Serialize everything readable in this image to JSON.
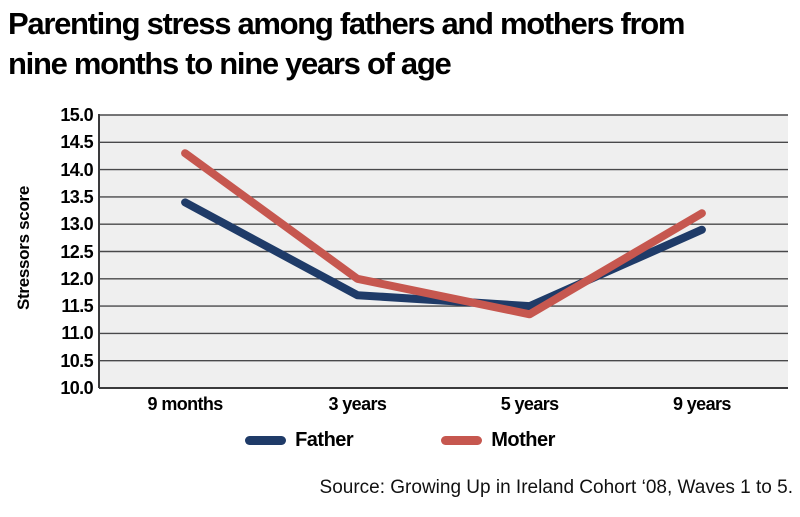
{
  "title": "Parenting stress among fathers and mothers from\nnine months to nine years of age",
  "source": "Source: Growing Up in Ireland Cohort ‘08, Waves 1 to 5.",
  "colors": {
    "father_line": "#1f3b68",
    "mother_line": "#c6574f",
    "plot_background": "#efefef",
    "gridline": "#48484a",
    "axis_line": "#3a3a3c",
    "text": "#000000",
    "page_background": "#ffffff"
  },
  "chart_data": {
    "type": "line",
    "title": "Parenting stress among fathers and mothers from nine months to nine years of age",
    "ylabel": "Stressors score",
    "xlabel": "",
    "categories": [
      "9 months",
      "3 years",
      "5 years",
      "9 years"
    ],
    "series": [
      {
        "name": "Father",
        "color": "#1f3b68",
        "values": [
          13.4,
          11.7,
          11.5,
          12.9
        ]
      },
      {
        "name": "Mother",
        "color": "#c6574f",
        "values": [
          14.3,
          12.0,
          11.35,
          13.2
        ]
      }
    ],
    "ylim": [
      10.0,
      15.0
    ],
    "yticks": [
      "15.0",
      "14.5",
      "14.0",
      "13.5",
      "13.0",
      "12.5",
      "12.0",
      "11.5",
      "11.0",
      "10.5",
      "10.0"
    ],
    "grid": true,
    "gridlines": "horizontal",
    "legend_position": "bottom",
    "source_label": "Source: Growing Up in Ireland Cohort ‘08, Waves 1 to 5."
  }
}
